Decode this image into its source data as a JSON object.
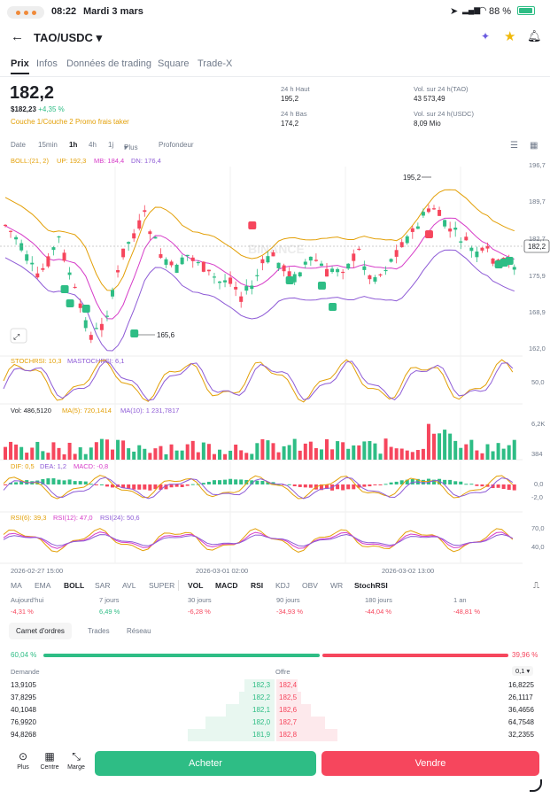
{
  "status": {
    "time": "08:22",
    "date": "Mardi 3 mars",
    "battery": "88 %"
  },
  "header": {
    "pair": "TAO/USDC"
  },
  "tabs": [
    "Prix",
    "Infos",
    "Données de trading",
    "Square",
    "Trade-X"
  ],
  "ticker": {
    "price": "182,2",
    "price_usd": "$182,23",
    "change": "+4,35 %",
    "tags": "Couche 1/Couche 2  Promo frais taker",
    "high_label": "24 h Haut",
    "high": "195,2",
    "low_label": "24 h Bas",
    "low": "174,2",
    "vol_tao_label": "Vol. sur 24 h(TAO)",
    "vol_tao": "43 573,49",
    "vol_usdc_label": "Vol. sur 24 h(USDC)",
    "vol_usdc": "8,09 Mio"
  },
  "timeframes": [
    "Date",
    "15min",
    "1h",
    "4h",
    "1j",
    "Plus",
    "Profondeur"
  ],
  "chart": {
    "boll": "BOLL:(21, 2)",
    "up": "UP: 192,3",
    "mb": "MB: 184,4",
    "dn": "DN: 176,4",
    "y_ticks": [
      "196,7",
      "189,7",
      "182,7",
      "175,9",
      "168,9",
      "162,0"
    ],
    "current": "182,2",
    "high_mark": "195,2",
    "low_mark": "165,6",
    "watermark": "BINANCE",
    "stoch": "STOCHRSI: 10,3",
    "mastoch": "MASTOCHRSI: 6,1",
    "stoch_tick": "50,0",
    "vol": "Vol: 486,5120",
    "ma5": "MA(5): 720,1414",
    "ma10": "MA(10): 1 231,7817",
    "vol_ticks": [
      "6,2K",
      "384"
    ],
    "dif": "DIF: 0,5",
    "dea": "DEA: 1,2",
    "macd": "MACD: -0,8",
    "macd_ticks": [
      "0,0",
      "-2,0"
    ],
    "rsi6": "RSI(6): 39,3",
    "rsi12": "RSI(12): 47,0",
    "rsi24": "RSI(24): 50,6",
    "rsi_ticks": [
      "70,0",
      "40,0"
    ],
    "x_ticks": [
      "2026-02-27 15:00",
      "2026-03-01 02:00",
      "2026-03-02 13:00"
    ]
  },
  "indicators": [
    "MA",
    "EMA",
    "BOLL",
    "SAR",
    "AVL",
    "SUPER",
    "VOL",
    "MACD",
    "RSI",
    "KDJ",
    "OBV",
    "WR",
    "StochRSI"
  ],
  "performance": [
    {
      "label": "Aujourd'hui",
      "value": "-4,31 %"
    },
    {
      "label": "7 jours",
      "value": "6,49 %"
    },
    {
      "label": "30 jours",
      "value": "-6,28 %"
    },
    {
      "label": "90 jours",
      "value": "-34,93 %"
    },
    {
      "label": "180 jours",
      "value": "-44,04 %"
    },
    {
      "label": "1 an",
      "value": "-48,81 %"
    }
  ],
  "orderbook": {
    "tabs": [
      "Carnet d'ordres",
      "Trades",
      "Réseau"
    ],
    "bid_pct": "60,04 %",
    "ask_pct": "39,96 %",
    "bid_label": "Demande",
    "ask_label": "Offre",
    "step": "0,1",
    "rows": [
      {
        "bq": "13,9105",
        "bp": "182,3",
        "ap": "182,4",
        "aq": "16,8225"
      },
      {
        "bq": "37,8295",
        "bp": "182,2",
        "ap": "182,5",
        "aq": "26,1117"
      },
      {
        "bq": "40,1048",
        "bp": "182,1",
        "ap": "182,6",
        "aq": "36,4656"
      },
      {
        "bq": "76,9920",
        "bp": "182,0",
        "ap": "182,7",
        "aq": "64,7548"
      },
      {
        "bq": "94,8268",
        "bp": "181,9",
        "ap": "182,8",
        "aq": "32,2355"
      }
    ]
  },
  "bottom": {
    "more": "Plus",
    "center": "Centre",
    "margin": "Marge",
    "buy": "Acheter",
    "sell": "Vendre"
  },
  "colors": {
    "green": "#2ebd85",
    "red": "#f6465d",
    "orange": "#e3a008"
  }
}
